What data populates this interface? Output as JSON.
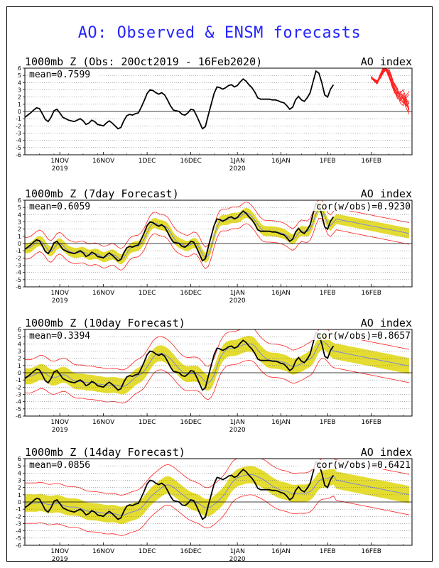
{
  "main_title": "AO: Observed & ENSM forecasts",
  "colors": {
    "observed": "#000000",
    "forecast_members": "#ff2020",
    "spread": "#e4dc30",
    "mean": "#7f8ad8",
    "title": "#2424ff",
    "grid": "#000000"
  },
  "chart_data": [
    {
      "type": "line",
      "title": "1000mb Z (Obs: 20Oct2019 - 16Feb2020)",
      "index_label": "AO index",
      "mean_label": "mean=0.7599",
      "cor_label": "",
      "ylim": [
        -6,
        6
      ],
      "yticks": [
        6,
        5,
        4,
        3,
        2,
        1,
        0,
        -1,
        -2,
        -3,
        -4,
        -5,
        -6
      ],
      "xlim": [
        "2019-10-20",
        "2020-03-01"
      ],
      "xticks": [
        {
          "date": "2019-11-01",
          "label": "1NOV",
          "year": "2019"
        },
        {
          "date": "2019-11-16",
          "label": "16NOV",
          "year": ""
        },
        {
          "date": "2019-12-01",
          "label": "1DEC",
          "year": ""
        },
        {
          "date": "2019-12-16",
          "label": "16DEC",
          "year": ""
        },
        {
          "date": "2020-01-01",
          "label": "1JAN",
          "year": "2020"
        },
        {
          "date": "2020-01-16",
          "label": "16JAN",
          "year": ""
        },
        {
          "date": "2020-02-01",
          "label": "1FEB",
          "year": ""
        },
        {
          "date": "2020-02-16",
          "label": "16FEB",
          "year": ""
        }
      ],
      "observed": {
        "start": "2019-10-20",
        "values": [
          -0.8,
          -0.5,
          -0.2,
          0.2,
          0.5,
          0.4,
          -0.3,
          -1.1,
          -1.4,
          -0.8,
          0.1,
          0.3,
          -0.2,
          -0.8,
          -1.0,
          -1.2,
          -1.3,
          -1.4,
          -1.2,
          -1.0,
          -1.3,
          -1.8,
          -1.6,
          -1.2,
          -1.4,
          -1.8,
          -1.9,
          -2.0,
          -1.6,
          -1.3,
          -1.6,
          -2.0,
          -2.4,
          -2.2,
          -1.3,
          -0.6,
          -0.4,
          -0.5,
          -0.3,
          -0.2,
          0.6,
          1.5,
          2.5,
          3.0,
          2.9,
          2.6,
          2.4,
          2.6,
          2.3,
          1.6,
          0.8,
          0.2,
          0.1,
          0.0,
          -0.4,
          -0.5,
          -0.2,
          0.3,
          0.2,
          -0.6,
          -1.5,
          -2.4,
          -2.1,
          -0.5,
          1.0,
          2.5,
          3.4,
          3.3,
          3.1,
          3.3,
          3.6,
          3.7,
          3.4,
          3.6,
          4.1,
          4.5,
          4.2,
          3.7,
          3.3,
          2.7,
          1.9,
          1.7,
          1.7,
          1.7,
          1.7,
          1.6,
          1.6,
          1.5,
          1.3,
          1.2,
          0.8,
          0.3,
          0.6,
          1.6,
          2.1,
          1.6,
          1.4,
          1.9,
          2.6,
          4.1,
          5.6,
          5.3,
          4.0,
          2.3,
          2.0,
          3.1,
          3.7
        ]
      },
      "forecast_start": "2020-02-16",
      "members": [
        [
          4.6,
          4.4,
          4.2,
          4.9,
          5.7,
          6.2,
          5.2,
          3.6,
          2.6,
          2.1,
          2.3,
          1.6,
          0.5,
          -0.4
        ],
        [
          4.8,
          4.2,
          3.9,
          4.6,
          5.5,
          6.4,
          5.6,
          4.4,
          3.0,
          2.2,
          1.5,
          2.1,
          1.0,
          0.2
        ],
        [
          4.7,
          4.3,
          4.0,
          4.8,
          5.9,
          6.0,
          5.1,
          4.1,
          3.2,
          2.6,
          2.0,
          1.2,
          0.9,
          0.6
        ],
        [
          4.5,
          4.5,
          4.3,
          4.5,
          5.2,
          6.3,
          6.0,
          4.9,
          3.6,
          2.8,
          1.8,
          2.5,
          1.6,
          0.3
        ],
        [
          4.9,
          4.4,
          4.1,
          5.1,
          6.1,
          5.8,
          4.8,
          3.8,
          2.8,
          1.8,
          2.6,
          3.0,
          1.8,
          1.0
        ],
        [
          4.6,
          4.2,
          3.8,
          4.6,
          5.6,
          6.1,
          5.4,
          4.5,
          3.7,
          3.0,
          2.3,
          1.7,
          1.3,
          1.5
        ],
        [
          4.7,
          4.5,
          4.2,
          4.7,
          5.4,
          5.9,
          5.0,
          4.0,
          2.7,
          2.2,
          1.2,
          0.8,
          1.9,
          2.4
        ],
        [
          4.8,
          4.3,
          4.0,
          4.9,
          5.8,
          6.3,
          5.7,
          4.7,
          3.3,
          2.4,
          2.8,
          1.8,
          0.7,
          1.2
        ],
        [
          4.6,
          4.4,
          4.1,
          4.6,
          5.3,
          5.7,
          4.9,
          4.3,
          3.9,
          3.2,
          1.6,
          1.2,
          2.2,
          2.8
        ],
        [
          4.7,
          4.2,
          3.9,
          4.8,
          5.7,
          6.2,
          5.3,
          3.9,
          3.0,
          2.7,
          2.4,
          2.2,
          1.4,
          -0.1
        ]
      ]
    },
    {
      "type": "line",
      "title": "1000mb Z (7day Forecast)",
      "index_label": "AO index",
      "mean_label": "mean=0.6059",
      "cor_label": "cor(w/obs)=0.9230",
      "ylim": [
        -6,
        6
      ],
      "yticks": [
        6,
        5,
        4,
        3,
        2,
        1,
        0,
        -1,
        -2,
        -3,
        -4,
        -5,
        -6
      ],
      "xlim": [
        "2019-10-20",
        "2020-03-01"
      ],
      "xticks": [
        {
          "date": "2019-11-01",
          "label": "1NOV",
          "year": "2019"
        },
        {
          "date": "2019-11-16",
          "label": "16NOV",
          "year": ""
        },
        {
          "date": "2019-12-01",
          "label": "1DEC",
          "year": ""
        },
        {
          "date": "2019-12-16",
          "label": "16DEC",
          "year": ""
        },
        {
          "date": "2020-01-01",
          "label": "1JAN",
          "year": "2020"
        },
        {
          "date": "2020-01-16",
          "label": "16JAN",
          "year": ""
        },
        {
          "date": "2020-02-01",
          "label": "1FEB",
          "year": ""
        },
        {
          "date": "2020-02-16",
          "label": "16FEB",
          "year": ""
        }
      ],
      "observed": {
        "start": "2019-10-20",
        "values": [
          -0.8,
          -0.5,
          -0.2,
          0.2,
          0.5,
          0.4,
          -0.3,
          -1.1,
          -1.4,
          -0.8,
          0.1,
          0.3,
          -0.2,
          -0.8,
          -1.0,
          -1.2,
          -1.3,
          -1.4,
          -1.2,
          -1.0,
          -1.3,
          -1.8,
          -1.6,
          -1.2,
          -1.4,
          -1.8,
          -1.9,
          -2.0,
          -1.6,
          -1.3,
          -1.6,
          -2.0,
          -2.4,
          -2.2,
          -1.3,
          -0.6,
          -0.4,
          -0.5,
          -0.3,
          -0.2,
          0.6,
          1.5,
          2.5,
          3.0,
          2.9,
          2.6,
          2.4,
          2.6,
          2.3,
          1.6,
          0.8,
          0.2,
          0.1,
          0.0,
          -0.4,
          -0.5,
          -0.2,
          0.3,
          0.2,
          -0.6,
          -1.5,
          -2.4,
          -2.1,
          -0.5,
          1.0,
          2.5,
          3.4,
          3.3,
          3.1,
          3.3,
          3.6,
          3.7,
          3.4,
          3.6,
          4.1,
          4.5,
          4.2,
          3.7,
          3.3,
          2.7,
          1.9,
          1.7,
          1.7,
          1.7,
          1.7,
          1.6,
          1.6,
          1.5,
          1.3,
          1.2,
          0.8,
          0.3,
          0.6,
          1.6,
          2.1,
          1.6,
          1.4,
          1.9,
          2.6,
          4.1,
          5.6,
          5.3,
          4.0,
          2.3,
          2.0,
          3.1,
          3.7
        ]
      },
      "forecast": {
        "start": "2019-10-20",
        "shift": 1,
        "length": 133,
        "band_half": 0.7,
        "outer_half": 1.5
      }
    },
    {
      "type": "line",
      "title": "1000mb Z (10day Forecast)",
      "index_label": "AO index",
      "mean_label": "mean=0.3394",
      "cor_label": "cor(w/obs)=0.8657",
      "ylim": [
        -6,
        6
      ],
      "yticks": [
        6,
        5,
        4,
        3,
        2,
        1,
        0,
        -1,
        -2,
        -3,
        -4,
        -5,
        -6
      ],
      "xlim": [
        "2019-10-20",
        "2020-03-01"
      ],
      "xticks": [
        {
          "date": "2019-11-01",
          "label": "1NOV",
          "year": "2019"
        },
        {
          "date": "2019-11-16",
          "label": "16NOV",
          "year": ""
        },
        {
          "date": "2019-12-01",
          "label": "1DEC",
          "year": ""
        },
        {
          "date": "2019-12-16",
          "label": "16DEC",
          "year": ""
        },
        {
          "date": "2020-01-01",
          "label": "1JAN",
          "year": "2020"
        },
        {
          "date": "2020-01-16",
          "label": "16JAN",
          "year": ""
        },
        {
          "date": "2020-02-01",
          "label": "1FEB",
          "year": ""
        },
        {
          "date": "2020-02-16",
          "label": "16FEB",
          "year": ""
        }
      ],
      "observed": {
        "start": "2019-10-20",
        "values": [
          -0.8,
          -0.5,
          -0.2,
          0.2,
          0.5,
          0.4,
          -0.3,
          -1.1,
          -1.4,
          -0.8,
          0.1,
          0.3,
          -0.2,
          -0.8,
          -1.0,
          -1.2,
          -1.3,
          -1.4,
          -1.2,
          -1.0,
          -1.3,
          -1.8,
          -1.6,
          -1.2,
          -1.4,
          -1.8,
          -1.9,
          -2.0,
          -1.6,
          -1.3,
          -1.6,
          -2.0,
          -2.4,
          -2.2,
          -1.3,
          -0.6,
          -0.4,
          -0.5,
          -0.3,
          -0.2,
          0.6,
          1.5,
          2.5,
          3.0,
          2.9,
          2.6,
          2.4,
          2.6,
          2.3,
          1.6,
          0.8,
          0.2,
          0.1,
          0.0,
          -0.4,
          -0.5,
          -0.2,
          0.3,
          0.2,
          -0.6,
          -1.5,
          -2.4,
          -2.1,
          -0.5,
          1.0,
          2.5,
          3.4,
          3.3,
          3.1,
          3.3,
          3.6,
          3.7,
          3.4,
          3.6,
          4.1,
          4.5,
          4.2,
          3.7,
          3.3,
          2.7,
          1.9,
          1.7,
          1.7,
          1.7,
          1.7,
          1.6,
          1.6,
          1.5,
          1.3,
          1.2,
          0.8,
          0.3,
          0.6,
          1.6,
          2.1,
          1.6,
          1.4,
          1.9,
          2.6,
          4.1,
          5.6,
          5.3,
          4.0,
          2.3,
          2.0,
          3.1,
          3.7
        ]
      },
      "forecast": {
        "start": "2019-10-20",
        "shift": 2,
        "length": 133,
        "band_half": 1.1,
        "outer_half": 2.3
      }
    },
    {
      "type": "line",
      "title": "1000mb Z (14day Forecast)",
      "index_label": "AO index",
      "mean_label": "mean=0.0856",
      "cor_label": "cor(w/obs)=0.6421",
      "ylim": [
        -6,
        6
      ],
      "yticks": [
        6,
        5,
        4,
        3,
        2,
        1,
        0,
        -1,
        -2,
        -3,
        -4,
        -5,
        -6
      ],
      "xlim": [
        "2019-10-20",
        "2020-03-01"
      ],
      "xticks": [
        {
          "date": "2019-11-01",
          "label": "1NOV",
          "year": "2019"
        },
        {
          "date": "2019-11-16",
          "label": "16NOV",
          "year": ""
        },
        {
          "date": "2019-12-01",
          "label": "1DEC",
          "year": ""
        },
        {
          "date": "2019-12-16",
          "label": "16DEC",
          "year": ""
        },
        {
          "date": "2020-01-01",
          "label": "1JAN",
          "year": "2020"
        },
        {
          "date": "2020-01-16",
          "label": "16JAN",
          "year": ""
        },
        {
          "date": "2020-02-01",
          "label": "1FEB",
          "year": ""
        },
        {
          "date": "2020-02-16",
          "label": "16FEB",
          "year": ""
        }
      ],
      "observed": {
        "start": "2019-10-20",
        "values": [
          -0.8,
          -0.5,
          -0.2,
          0.2,
          0.5,
          0.4,
          -0.3,
          -1.1,
          -1.4,
          -0.8,
          0.1,
          0.3,
          -0.2,
          -0.8,
          -1.0,
          -1.2,
          -1.3,
          -1.4,
          -1.2,
          -1.0,
          -1.3,
          -1.8,
          -1.6,
          -1.2,
          -1.4,
          -1.8,
          -1.9,
          -2.0,
          -1.6,
          -1.3,
          -1.6,
          -2.0,
          -2.4,
          -2.2,
          -1.3,
          -0.6,
          -0.4,
          -0.5,
          -0.3,
          -0.2,
          0.6,
          1.5,
          2.5,
          3.0,
          2.9,
          2.6,
          2.4,
          2.6,
          2.3,
          1.6,
          0.8,
          0.2,
          0.1,
          0.0,
          -0.4,
          -0.5,
          -0.2,
          0.3,
          0.2,
          -0.6,
          -1.5,
          -2.4,
          -2.1,
          -0.5,
          1.0,
          2.5,
          3.4,
          3.3,
          3.1,
          3.3,
          3.6,
          3.7,
          3.4,
          3.6,
          4.1,
          4.5,
          4.2,
          3.7,
          3.3,
          2.7,
          1.9,
          1.7,
          1.7,
          1.7,
          1.7,
          1.6,
          1.6,
          1.5,
          1.3,
          1.2,
          0.8,
          0.3,
          0.6,
          1.6,
          2.1,
          1.6,
          1.4,
          1.9,
          2.6,
          4.1,
          5.6,
          5.3,
          4.0,
          2.3,
          2.0,
          3.1,
          3.7
        ]
      },
      "forecast": {
        "start": "2019-10-20",
        "shift": 4,
        "length": 133,
        "band_half": 1.2,
        "outer_half": 2.8
      }
    }
  ]
}
